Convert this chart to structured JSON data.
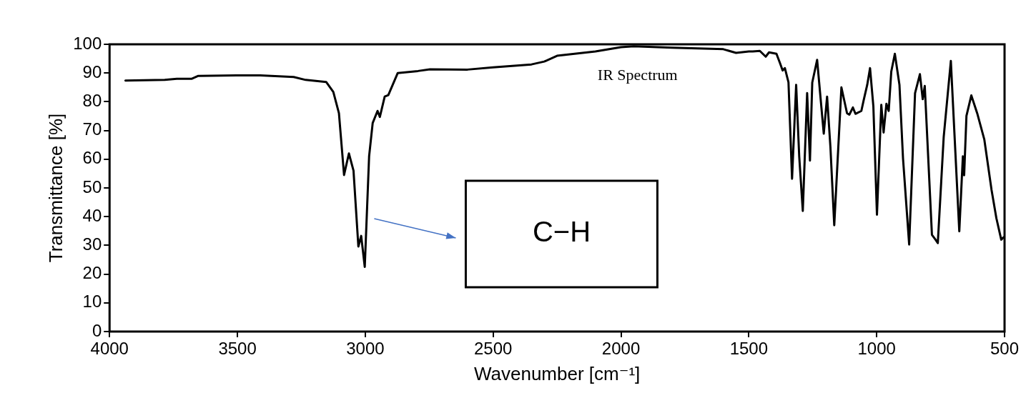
{
  "chart_data": {
    "type": "line",
    "title": "IR Spectrum",
    "xlabel": "Wavenumber [cm⁻¹]",
    "ylabel": "Transmittance [%]",
    "xlim": [
      4000,
      500
    ],
    "xticks": [
      4000,
      3500,
      3000,
      2500,
      2000,
      1500,
      1000,
      500
    ],
    "ylim": [
      0,
      100
    ],
    "yticks": [
      0,
      10,
      20,
      30,
      40,
      50,
      60,
      70,
      80,
      90,
      100
    ],
    "grid": false,
    "legend": false,
    "marker": "none",
    "line_style": "solid",
    "annotations": [
      "C−H"
    ],
    "series": [
      {
        "color": "#000000",
        "x": [
          3938,
          3784,
          3737,
          3678,
          3653,
          3504,
          3411,
          3280,
          3233,
          3153,
          3125,
          3103,
          3083,
          3064,
          3046,
          3027,
          3016,
          3002,
          2985,
          2971,
          2952,
          2943,
          2924,
          2910,
          2873,
          2794,
          2747,
          2600,
          2500,
          2350,
          2300,
          2250,
          2100,
          2000,
          1950,
          1800,
          1600,
          1550,
          1500,
          1485,
          1457,
          1434,
          1421,
          1392,
          1378,
          1368,
          1359,
          1345,
          1331,
          1315,
          1303,
          1289,
          1272,
          1261,
          1252,
          1233,
          1207,
          1194,
          1181,
          1166,
          1138,
          1116,
          1107,
          1093,
          1083,
          1060,
          1051,
          1037,
          1026,
          1013,
          999,
          982,
          973,
          962,
          953,
          943,
          929,
          911,
          897,
          873,
          850,
          831,
          820,
          812,
          784,
          770,
          761,
          738,
          710,
          677,
          663,
          658,
          649,
          630,
          607,
          579,
          551,
          532,
          513,
          504
        ],
        "values": [
          87.4,
          87.6,
          88.0,
          88.0,
          89.0,
          89.2,
          89.2,
          88.6,
          87.6,
          86.9,
          83.4,
          76,
          54.5,
          62,
          56,
          29.6,
          33.3,
          22.5,
          61,
          72.6,
          76.8,
          74.7,
          81.8,
          82.3,
          90,
          90.7,
          91.3,
          91.2,
          92,
          93,
          94,
          96,
          97.5,
          99,
          99.3,
          98.8,
          98.3,
          97,
          97.5,
          97.5,
          97.7,
          95.7,
          97.2,
          96.7,
          93.4,
          90.9,
          91.7,
          86.8,
          53.2,
          85.9,
          61,
          42,
          83,
          59.5,
          86.7,
          94.6,
          68.9,
          81.8,
          64.3,
          37,
          85,
          76,
          75.5,
          78,
          75.8,
          76.8,
          80.5,
          85.9,
          91.7,
          78.4,
          40.7,
          78.9,
          69.3,
          79.3,
          76.8,
          90.5,
          96.7,
          85.9,
          60.2,
          30.3,
          83,
          89.6,
          80.9,
          85.5,
          33.7,
          32,
          30.8,
          67.7,
          94.2,
          34.9,
          61,
          54.4,
          75.1,
          82.2,
          76,
          66.8,
          49.4,
          39.5,
          32,
          32.8
        ]
      }
    ]
  }
}
